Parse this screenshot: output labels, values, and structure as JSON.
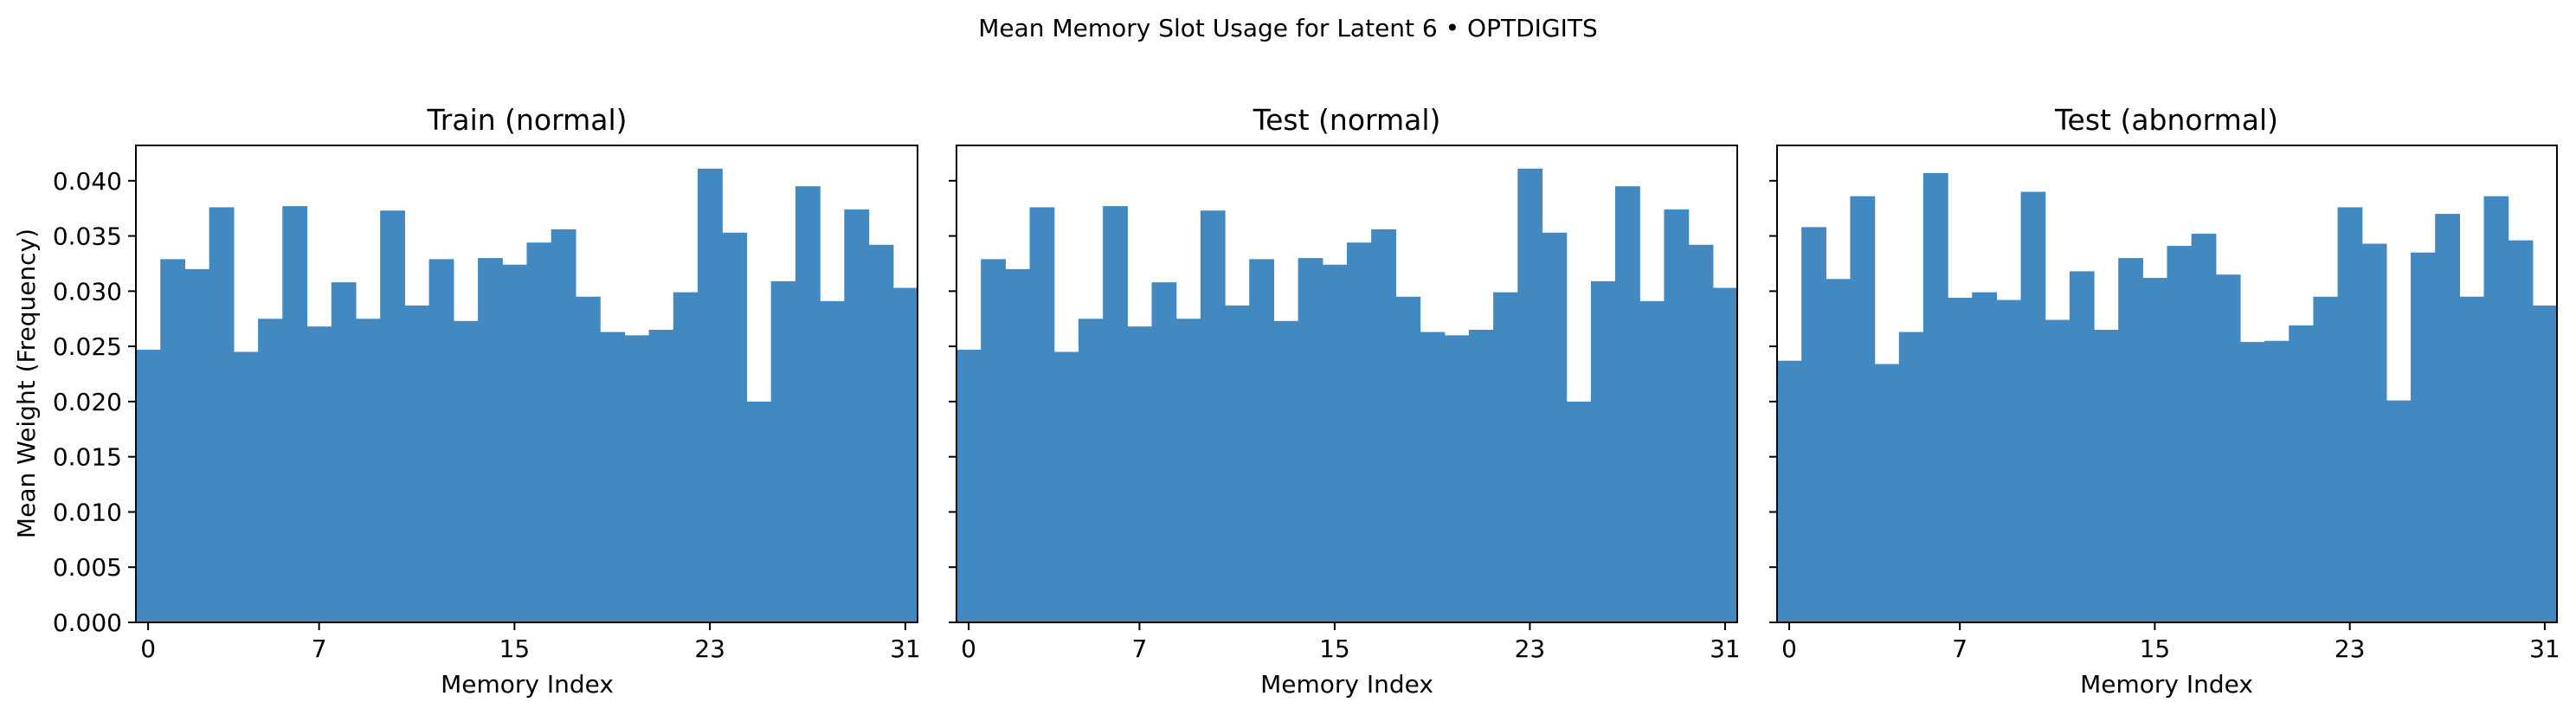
{
  "figure": {
    "title": "Mean Memory Slot Usage for Latent 6 • OPTDIGITS",
    "bar_color": "#4189c0",
    "axis_color": "#000000"
  },
  "chart_data": [
    {
      "type": "bar",
      "title": "Train (normal)",
      "xlabel": "Memory Index",
      "ylabel": "Mean Weight (Frequency)",
      "x": [
        0,
        1,
        2,
        3,
        4,
        5,
        6,
        7,
        8,
        9,
        10,
        11,
        12,
        13,
        14,
        15,
        16,
        17,
        18,
        19,
        20,
        21,
        22,
        23,
        24,
        25,
        26,
        27,
        28,
        29,
        30,
        31
      ],
      "values": [
        0.0247,
        0.0329,
        0.032,
        0.0376,
        0.0245,
        0.0275,
        0.0377,
        0.0268,
        0.0308,
        0.0275,
        0.0373,
        0.0287,
        0.0329,
        0.0273,
        0.033,
        0.0324,
        0.0344,
        0.0356,
        0.0295,
        0.0263,
        0.026,
        0.0265,
        0.0299,
        0.0411,
        0.0353,
        0.02,
        0.0309,
        0.0395,
        0.0291,
        0.0374,
        0.0342,
        0.0303
      ],
      "xticks": [
        0,
        7,
        15,
        23,
        31
      ],
      "yticks": [
        0.0,
        0.005,
        0.01,
        0.015,
        0.02,
        0.025,
        0.03,
        0.035,
        0.04
      ],
      "ytick_labels": [
        "0.000",
        "0.005",
        "0.010",
        "0.015",
        "0.020",
        "0.025",
        "0.030",
        "0.035",
        "0.040"
      ],
      "xlim": [
        -0.5,
        31.5
      ],
      "ylim": [
        0,
        0.0432
      ],
      "grid": false
    },
    {
      "type": "bar",
      "title": "Test (normal)",
      "xlabel": "Memory Index",
      "ylabel": "",
      "x": [
        0,
        1,
        2,
        3,
        4,
        5,
        6,
        7,
        8,
        9,
        10,
        11,
        12,
        13,
        14,
        15,
        16,
        17,
        18,
        19,
        20,
        21,
        22,
        23,
        24,
        25,
        26,
        27,
        28,
        29,
        30,
        31
      ],
      "values": [
        0.0247,
        0.0329,
        0.032,
        0.0376,
        0.0245,
        0.0275,
        0.0377,
        0.0268,
        0.0308,
        0.0275,
        0.0373,
        0.0287,
        0.0329,
        0.0273,
        0.033,
        0.0324,
        0.0344,
        0.0356,
        0.0295,
        0.0263,
        0.026,
        0.0265,
        0.0299,
        0.0411,
        0.0353,
        0.02,
        0.0309,
        0.0395,
        0.0291,
        0.0374,
        0.0342,
        0.0303
      ],
      "xticks": [
        0,
        7,
        15,
        23,
        31
      ],
      "yticks": [
        0.0,
        0.005,
        0.01,
        0.015,
        0.02,
        0.025,
        0.03,
        0.035,
        0.04
      ],
      "ytick_labels": [],
      "xlim": [
        -0.5,
        31.5
      ],
      "ylim": [
        0,
        0.0432
      ],
      "grid": false
    },
    {
      "type": "bar",
      "title": "Test (abnormal)",
      "xlabel": "Memory Index",
      "ylabel": "",
      "x": [
        0,
        1,
        2,
        3,
        4,
        5,
        6,
        7,
        8,
        9,
        10,
        11,
        12,
        13,
        14,
        15,
        16,
        17,
        18,
        19,
        20,
        21,
        22,
        23,
        24,
        25,
        26,
        27,
        28,
        29,
        30,
        31
      ],
      "values": [
        0.0237,
        0.0358,
        0.0311,
        0.0386,
        0.0234,
        0.0263,
        0.0407,
        0.0294,
        0.0299,
        0.0292,
        0.039,
        0.0274,
        0.0318,
        0.0265,
        0.033,
        0.0312,
        0.0341,
        0.0352,
        0.0315,
        0.0254,
        0.0255,
        0.0269,
        0.0295,
        0.0376,
        0.0343,
        0.0201,
        0.0335,
        0.037,
        0.0295,
        0.0386,
        0.0346,
        0.0287
      ],
      "xticks": [
        0,
        7,
        15,
        23,
        31
      ],
      "yticks": [
        0.0,
        0.005,
        0.01,
        0.015,
        0.02,
        0.025,
        0.03,
        0.035,
        0.04
      ],
      "ytick_labels": [],
      "xlim": [
        -0.5,
        31.5
      ],
      "ylim": [
        0,
        0.0432
      ],
      "grid": false
    }
  ]
}
